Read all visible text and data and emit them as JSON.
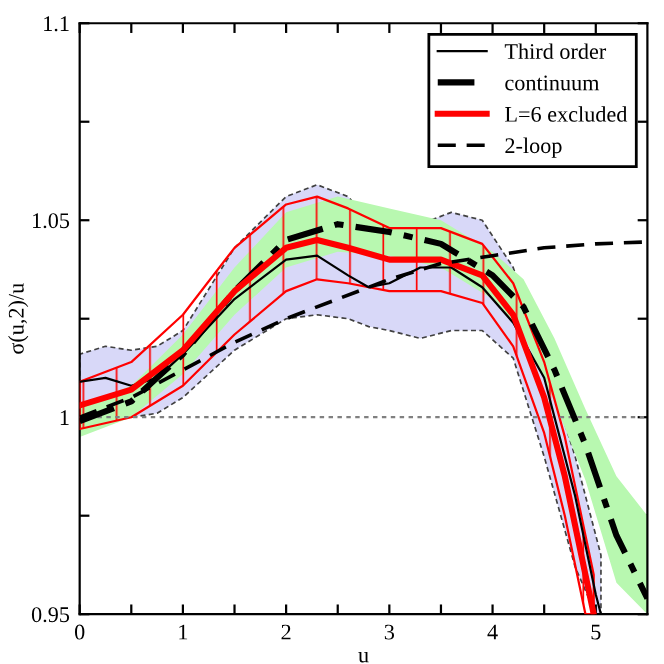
{
  "chart_data": {
    "type": "line",
    "xlabel": "u",
    "ylabel": "σ(u,2)/u",
    "xlim": [
      0,
      5.5
    ],
    "ylim": [
      0.95,
      1.1
    ],
    "xticks": [
      0,
      {
        "value": 0.5,
        "label": null
      },
      1,
      {
        "value": 1.5,
        "label": null
      },
      2,
      {
        "value": 2.5,
        "label": null
      },
      3,
      {
        "value": 3.5,
        "label": null
      },
      4,
      {
        "value": 4.5,
        "label": null
      },
      5
    ],
    "yticks": [
      0.95,
      {
        "value": 0.975,
        "label": null
      },
      1,
      {
        "value": 1.025,
        "label": null
      },
      1.05,
      {
        "value": 1.075,
        "label": null
      },
      1.1
    ],
    "legend": "top right",
    "grid": false,
    "ref_lines": [
      {
        "axis": "y",
        "value": 1,
        "color": "#808080",
        "line_style": "dotted"
      }
    ],
    "series": [
      {
        "name": "Third order",
        "color": "#000000",
        "line_style": "solid",
        "x": [
          0,
          0.25,
          0.5,
          0.75,
          1,
          1.5,
          2,
          2.3,
          2.6,
          2.8,
          3.0,
          3.3,
          3.6,
          3.9,
          4.2,
          4.5,
          4.8,
          5.0,
          5.05
        ],
        "values": [
          1.009,
          1.01,
          1.008,
          1.01,
          1.016,
          1.03,
          1.04,
          1.041,
          1.036,
          1.033,
          1.034,
          1.038,
          1.038,
          1.033,
          1.024,
          1.01,
          0.98,
          0.955,
          0.95
        ],
        "lower": [
          1.002,
          1.001,
          1.0,
          1.001,
          1.005,
          1.017,
          1.025,
          1.026,
          1.025,
          1.023,
          1.022,
          1.02,
          1.022,
          1.022,
          1.015,
          0.99,
          0.962,
          0.95,
          0.95
        ],
        "upper": [
          1.016,
          1.018,
          1.017,
          1.018,
          1.022,
          1.043,
          1.056,
          1.059,
          1.056,
          1.05,
          1.046,
          1.049,
          1.052,
          1.05,
          1.038,
          1.015,
          0.99,
          0.97,
          0.965
        ]
      },
      {
        "name": "continuum",
        "color": "#000000",
        "line_style": "dashdot",
        "x": [
          0,
          0.5,
          1,
          1.5,
          2,
          2.5,
          3,
          3.5,
          4,
          4.3,
          4.6,
          4.9,
          5.2,
          5.5
        ],
        "values": [
          0.999,
          1.004,
          1.016,
          1.032,
          1.045,
          1.049,
          1.047,
          1.044,
          1.036,
          1.028,
          1.012,
          0.993,
          0.97,
          0.954
        ],
        "lower": [
          0.995,
          1.0,
          1.011,
          1.026,
          1.038,
          1.042,
          1.041,
          1.038,
          1.03,
          1.021,
          1.004,
          0.984,
          0.958,
          0.95
        ],
        "upper": [
          1.003,
          1.008,
          1.021,
          1.038,
          1.052,
          1.056,
          1.053,
          1.05,
          1.042,
          1.035,
          1.02,
          1.002,
          0.985,
          0.975
        ]
      },
      {
        "name": "L=6 excluded",
        "color": "#ff0000",
        "line_style": "solid",
        "x": [
          0,
          0.5,
          1,
          1.5,
          2,
          2.3,
          2.6,
          3,
          3.5,
          3.9,
          4.2,
          4.5,
          4.7,
          4.9,
          4.98
        ],
        "values": [
          1.003,
          1.007,
          1.017,
          1.032,
          1.043,
          1.045,
          1.043,
          1.04,
          1.04,
          1.036,
          1.026,
          1.005,
          0.985,
          0.96,
          0.95
        ],
        "lower": [
          0.997,
          1.0,
          1.008,
          1.021,
          1.032,
          1.035,
          1.034,
          1.032,
          1.032,
          1.029,
          1.018,
          0.996,
          0.975,
          0.95,
          0.95
        ],
        "upper": [
          1.009,
          1.014,
          1.026,
          1.043,
          1.054,
          1.056,
          1.053,
          1.048,
          1.048,
          1.044,
          1.034,
          1.014,
          0.995,
          0.97,
          0.96
        ]
      },
      {
        "name": "2-loop",
        "color": "#000000",
        "line_style": "dashed",
        "x": [
          0,
          0.5,
          1,
          1.5,
          2,
          2.5,
          3,
          3.5,
          4,
          4.5,
          5,
          5.5
        ],
        "values": [
          1.0,
          1.005,
          1.012,
          1.019,
          1.025,
          1.03,
          1.035,
          1.039,
          1.041,
          1.043,
          1.044,
          1.0445
        ]
      }
    ]
  }
}
